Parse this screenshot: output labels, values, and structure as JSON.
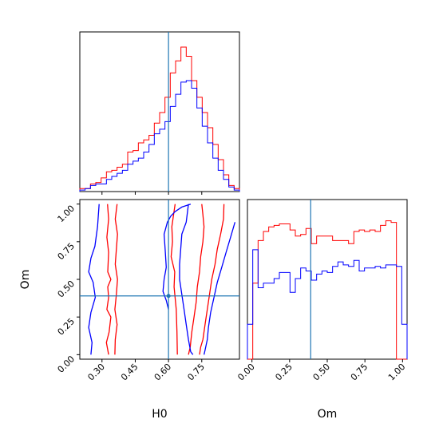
{
  "chart_data": [
    {
      "panel": "H0 marginal",
      "type": "histogram",
      "x_range": [
        0.2,
        0.92
      ],
      "y_range": [
        0,
        1.05
      ],
      "truth_value": 0.6,
      "bins_edges": [
        0.2,
        0.224,
        0.248,
        0.272,
        0.296,
        0.32,
        0.344,
        0.368,
        0.392,
        0.416,
        0.44,
        0.464,
        0.488,
        0.512,
        0.536,
        0.56,
        0.584,
        0.608,
        0.632,
        0.656,
        0.68,
        0.704,
        0.728,
        0.752,
        0.776,
        0.8,
        0.824,
        0.848,
        0.872,
        0.896,
        0.92
      ],
      "series": [
        {
          "color": "#ff0000",
          "values": [
            0.02,
            0.02,
            0.05,
            0.06,
            0.09,
            0.13,
            0.14,
            0.16,
            0.18,
            0.26,
            0.27,
            0.32,
            0.34,
            0.37,
            0.45,
            0.52,
            0.62,
            0.78,
            0.86,
            0.95,
            0.89,
            0.73,
            0.62,
            0.52,
            0.42,
            0.31,
            0.21,
            0.11,
            0.04,
            0.02
          ]
        },
        {
          "color": "#0000ff",
          "values": [
            0.01,
            0.02,
            0.04,
            0.05,
            0.05,
            0.08,
            0.1,
            0.12,
            0.14,
            0.18,
            0.2,
            0.22,
            0.26,
            0.31,
            0.38,
            0.41,
            0.46,
            0.56,
            0.64,
            0.72,
            0.73,
            0.68,
            0.55,
            0.43,
            0.32,
            0.22,
            0.14,
            0.08,
            0.03,
            0.01
          ]
        }
      ]
    },
    {
      "panel": "Om marginal",
      "type": "histogram",
      "x_range": [
        -0.03,
        1.03
      ],
      "y_range": [
        0,
        1.05
      ],
      "truth_value": 0.39,
      "bins_edges": [
        -0.03,
        0.0053,
        0.0407,
        0.076,
        0.1113,
        0.1467,
        0.182,
        0.2173,
        0.2527,
        0.288,
        0.3233,
        0.3587,
        0.394,
        0.4293,
        0.4647,
        0.5,
        0.5353,
        0.5707,
        0.606,
        0.6413,
        0.6767,
        0.712,
        0.7473,
        0.7827,
        0.818,
        0.8533,
        0.8887,
        0.924,
        0.9593,
        0.9947,
        1.03
      ],
      "series": [
        {
          "color": "#ff0000",
          "values": [
            0,
            0.5,
            0.78,
            0.84,
            0.87,
            0.88,
            0.89,
            0.89,
            0.85,
            0.81,
            0.82,
            0.86,
            0.76,
            0.81,
            0.81,
            0.81,
            0.78,
            0.78,
            0.78,
            0.76,
            0.84,
            0.85,
            0.84,
            0.85,
            0.84,
            0.88,
            0.91,
            0.9,
            0,
            0
          ]
        },
        {
          "color": "#0000ff",
          "values": [
            0.23,
            0.72,
            0.47,
            0.5,
            0.5,
            0.53,
            0.57,
            0.57,
            0.44,
            0.53,
            0.6,
            0.58,
            0.52,
            0.56,
            0.58,
            0.57,
            0.61,
            0.64,
            0.62,
            0.61,
            0.65,
            0.58,
            0.6,
            0.6,
            0.61,
            0.6,
            0.62,
            0.62,
            0.61,
            0.23
          ]
        }
      ]
    },
    {
      "panel": "H0 vs Om joint",
      "type": "contour",
      "x_range": [
        0.2,
        0.92
      ],
      "y_range": [
        -0.03,
        1.03
      ],
      "truth": {
        "x": 0.6,
        "y": 0.39
      },
      "contours": [
        {
          "color": "#ff0000",
          "level": "inner",
          "x": [
            0.325,
            0.33,
            0.322,
            0.33,
            0.326,
            0.34,
            0.326,
            0.33,
            0.322,
            0.34,
            0.332,
            0.32,
            0.33
          ],
          "y": [
            1.0,
            0.9,
            0.78,
            0.68,
            0.55,
            0.5,
            0.45,
            0.38,
            0.3,
            0.25,
            0.15,
            0.08,
            0.0
          ]
        },
        {
          "color": "#ff0000",
          "level": "inner",
          "x": [
            0.368,
            0.36,
            0.37,
            0.365,
            0.36,
            0.37,
            0.365,
            0.358,
            0.368,
            0.36,
            0.358
          ],
          "y": [
            1.0,
            0.9,
            0.8,
            0.7,
            0.6,
            0.5,
            0.4,
            0.3,
            0.2,
            0.1,
            0.0
          ]
        },
        {
          "color": "#ff0000",
          "level": "inner",
          "x": [
            0.63,
            0.622,
            0.615,
            0.618,
            0.612,
            0.628,
            0.625,
            0.635,
            0.638,
            0.64
          ],
          "y": [
            1.0,
            0.92,
            0.85,
            0.75,
            0.65,
            0.55,
            0.45,
            0.3,
            0.15,
            0.0
          ]
        },
        {
          "color": "#ff0000",
          "level": "inner",
          "x": [
            0.75,
            0.755,
            0.76,
            0.755,
            0.745,
            0.74,
            0.73,
            0.725,
            0.715,
            0.705,
            0.698,
            0.69
          ],
          "y": [
            1.0,
            0.93,
            0.85,
            0.75,
            0.65,
            0.55,
            0.45,
            0.35,
            0.25,
            0.15,
            0.05,
            0.0
          ]
        },
        {
          "color": "#ff0000",
          "level": "outer",
          "x": [
            0.85,
            0.848,
            0.835,
            0.82,
            0.81,
            0.795,
            0.785,
            0.775,
            0.765,
            0.755,
            0.745,
            0.74
          ],
          "y": [
            1.0,
            0.9,
            0.8,
            0.7,
            0.6,
            0.5,
            0.4,
            0.3,
            0.2,
            0.1,
            0.05,
            0.0
          ]
        },
        {
          "color": "#0000ff",
          "level": "inner",
          "x": [
            0.287,
            0.28,
            0.268,
            0.25,
            0.24,
            0.26,
            0.27,
            0.25,
            0.24,
            0.255,
            0.25
          ],
          "y": [
            1.0,
            0.85,
            0.72,
            0.64,
            0.55,
            0.48,
            0.38,
            0.28,
            0.18,
            0.08,
            0.0
          ]
        },
        {
          "color": "#0000ff",
          "level": "inner",
          "x": [
            0.6,
            0.59,
            0.575,
            0.58,
            0.59,
            0.585,
            0.58,
            0.595,
            0.61,
            0.63,
            0.66,
            0.7
          ],
          "y": [
            0.3,
            0.36,
            0.42,
            0.5,
            0.58,
            0.7,
            0.8,
            0.88,
            0.92,
            0.95,
            0.98,
            1.0
          ]
        },
        {
          "color": "#0000ff",
          "level": "inner",
          "x": [
            0.69,
            0.68,
            0.66,
            0.655,
            0.65,
            0.65,
            0.66,
            0.67,
            0.68,
            0.69,
            0.7,
            0.71
          ],
          "y": [
            1.0,
            0.88,
            0.8,
            0.7,
            0.6,
            0.5,
            0.4,
            0.3,
            0.2,
            0.1,
            0.02,
            0.0
          ]
        },
        {
          "color": "#0000ff",
          "level": "outer",
          "x": [
            0.9,
            0.88,
            0.86,
            0.84,
            0.82,
            0.805,
            0.79,
            0.78,
            0.775,
            0.765,
            0.76
          ],
          "y": [
            0.88,
            0.78,
            0.68,
            0.58,
            0.48,
            0.38,
            0.28,
            0.18,
            0.1,
            0.03,
            0.0
          ]
        }
      ]
    }
  ],
  "axes": {
    "joint_xlabel": "H0",
    "joint_ylabel": "Om",
    "om_xlabel": "Om",
    "h0_ticks": [
      "0.30",
      "0.45",
      "0.60",
      "0.75"
    ],
    "om_y_ticks": [
      "0.00",
      "0.25",
      "0.50",
      "0.75",
      "1.00"
    ],
    "om_x_ticks": [
      "0.00",
      "0.25",
      "0.50",
      "0.75",
      "1.00"
    ]
  },
  "colors": {
    "red": "#ff0000",
    "blue": "#0000ff",
    "truth": "#1f77b4"
  }
}
